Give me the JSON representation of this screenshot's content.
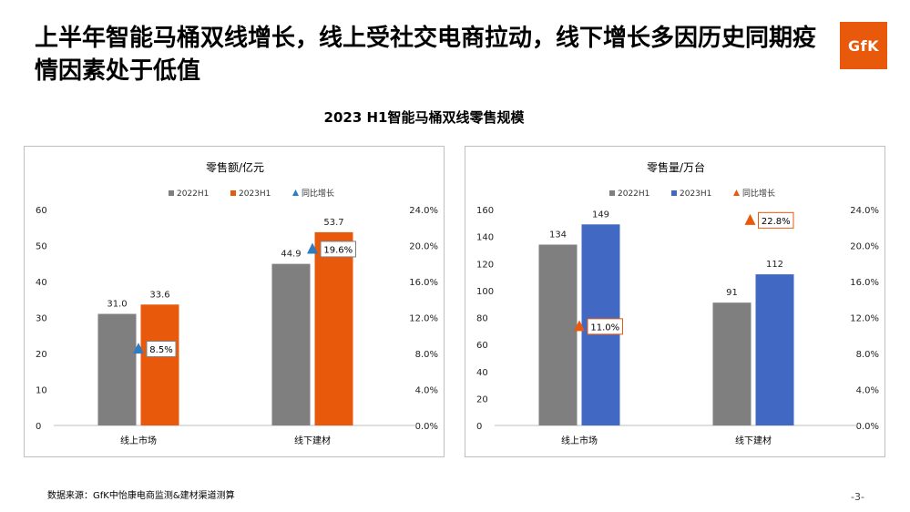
{
  "headline": "上半年智能马桶双线增长，线上受社交电商拉动，线下增长多因历史同期疫情因素处于低值",
  "logo_text": "GfK",
  "subtitle": "2023 H1智能马桶双线零售规模",
  "source": "数据来源：GfK中怡康电商监测&建材渠道测算",
  "page_number": "-3-",
  "colors": {
    "gray": "#7f7f7f",
    "orange": "#e8590c",
    "blue": "#4169c4",
    "triangle_left": "#2f7dc1",
    "triangle_right": "#e8590c",
    "logo_bg": "#e8590c"
  },
  "chart_data": [
    {
      "type": "bar",
      "title": "零售额/亿元",
      "categories": [
        "线上市场",
        "线下建材"
      ],
      "series": [
        {
          "name": "2022H1",
          "values": [
            31.0,
            44.9
          ],
          "color": "#7f7f7f"
        },
        {
          "name": "2023H1",
          "values": [
            33.6,
            53.7
          ],
          "color": "#e8590c"
        }
      ],
      "growth": {
        "name": "同比增长",
        "values": [
          8.5,
          19.6
        ],
        "labels": [
          "8.5%",
          "19.6%"
        ],
        "marker_color": "#2f7dc1"
      },
      "value_labels": [
        [
          "31.0",
          "44.9"
        ],
        [
          "33.6",
          "53.7"
        ]
      ],
      "y_left": {
        "min": 0,
        "max": 60,
        "ticks": [
          "0",
          "10",
          "20",
          "30",
          "40",
          "50",
          "60"
        ]
      },
      "y_right": {
        "min": 0,
        "max": 24,
        "ticks": [
          "0.0%",
          "4.0%",
          "8.0%",
          "12.0%",
          "16.0%",
          "20.0%",
          "24.0%"
        ]
      },
      "legend_position": "top-center",
      "grid": false
    },
    {
      "type": "bar",
      "title": "零售量/万台",
      "categories": [
        "线上市场",
        "线下建材"
      ],
      "series": [
        {
          "name": "2022H1",
          "values": [
            134,
            91
          ],
          "color": "#7f7f7f"
        },
        {
          "name": "2023H1",
          "values": [
            149,
            112
          ],
          "color": "#4169c4"
        }
      ],
      "growth": {
        "name": "同比增长",
        "values": [
          11.0,
          22.8
        ],
        "labels": [
          "11.0%",
          "22.8%"
        ],
        "marker_color": "#e8590c"
      },
      "value_labels": [
        [
          "134",
          "91"
        ],
        [
          "149",
          "112"
        ]
      ],
      "y_left": {
        "min": 0,
        "max": 160,
        "ticks": [
          "0",
          "20",
          "40",
          "60",
          "80",
          "100",
          "120",
          "140",
          "160"
        ]
      },
      "y_right": {
        "min": 0,
        "max": 24,
        "ticks": [
          "0.0%",
          "4.0%",
          "8.0%",
          "12.0%",
          "16.0%",
          "20.0%",
          "24.0%"
        ]
      },
      "legend_position": "top-center",
      "grid": false
    }
  ]
}
